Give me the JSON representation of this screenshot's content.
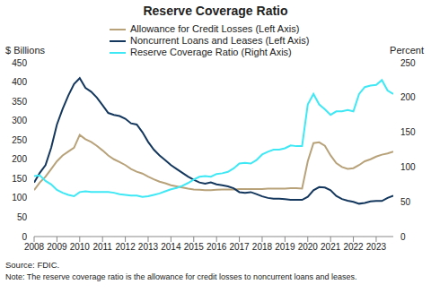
{
  "chart_data": {
    "type": "line",
    "title": "Reserve Coverage Ratio",
    "ylabel": "$ Billions",
    "y2label": "Percent",
    "source": "Source: FDIC.",
    "note": "Note: The reserve coverage ratio is the allowance for credit losses to noncurrent loans and leases.",
    "x": [
      2008,
      2008.25,
      2008.5,
      2008.75,
      2009,
      2009.25,
      2009.5,
      2009.75,
      2010,
      2010.25,
      2010.5,
      2010.75,
      2011,
      2011.25,
      2011.5,
      2011.75,
      2012,
      2012.25,
      2012.5,
      2012.75,
      2013,
      2013.25,
      2013.5,
      2013.75,
      2014,
      2014.25,
      2014.5,
      2014.75,
      2015,
      2015.25,
      2015.5,
      2015.75,
      2016,
      2016.25,
      2016.5,
      2016.75,
      2017,
      2017.25,
      2017.5,
      2017.75,
      2018,
      2018.25,
      2018.5,
      2018.75,
      2019,
      2019.25,
      2019.5,
      2019.75,
      2020,
      2020.25,
      2020.5,
      2020.75,
      2021,
      2021.25,
      2021.5,
      2021.75,
      2022,
      2022.25,
      2022.5,
      2022.75,
      2023,
      2023.25,
      2023.5,
      2023.75
    ],
    "xlim": [
      2008,
      2023.75
    ],
    "xticks": [
      2008,
      2009,
      2010,
      2011,
      2012,
      2013,
      2014,
      2015,
      2016,
      2017,
      2018,
      2019,
      2020,
      2021,
      2022,
      2023
    ],
    "ylim": [
      0,
      450
    ],
    "yticks": [
      0,
      50,
      100,
      150,
      200,
      250,
      300,
      350,
      400,
      450
    ],
    "y2lim": [
      0,
      250
    ],
    "y2ticks": [
      0,
      50,
      100,
      150,
      200,
      250
    ],
    "grid": false,
    "series": [
      {
        "name": "Allowance for Credit Losses (Left Axis)",
        "color": "#b8a27a",
        "values": [
          120,
          140,
          155,
          175,
          195,
          210,
          220,
          230,
          263,
          252,
          245,
          235,
          223,
          210,
          200,
          193,
          185,
          175,
          168,
          163,
          155,
          148,
          142,
          138,
          133,
          130,
          127,
          124,
          122,
          121,
          120,
          120,
          121,
          122,
          122,
          122,
          123,
          123,
          123,
          123,
          123,
          124,
          124,
          124,
          124,
          125,
          125,
          124,
          195,
          242,
          244,
          235,
          210,
          190,
          180,
          175,
          177,
          185,
          195,
          200,
          207,
          212,
          215,
          220
        ]
      },
      {
        "name": "Noncurrent Loans and Leases (Left Axis)",
        "color": "#14375e",
        "values": [
          140,
          165,
          185,
          230,
          290,
          330,
          365,
          395,
          410,
          385,
          375,
          360,
          340,
          320,
          315,
          312,
          305,
          293,
          290,
          270,
          245,
          225,
          210,
          198,
          185,
          175,
          165,
          155,
          147,
          140,
          137,
          140,
          135,
          133,
          130,
          125,
          115,
          113,
          115,
          110,
          104,
          100,
          98,
          98,
          97,
          95,
          95,
          95,
          103,
          120,
          128,
          127,
          120,
          105,
          97,
          93,
          90,
          85,
          87,
          91,
          92,
          92,
          100,
          106
        ]
      },
      {
        "name": "Reserve Coverage Ratio (Right Axis)",
        "color": "#3ee8f5",
        "axis": "y2",
        "values": [
          87,
          88,
          80,
          75,
          67,
          63,
          60,
          58,
          64,
          65,
          64,
          64,
          64,
          64,
          63,
          61,
          60,
          59,
          59,
          57,
          58,
          60,
          62,
          65,
          68,
          70,
          73,
          77,
          82,
          86,
          87,
          86,
          90,
          91,
          93,
          98,
          105,
          106,
          105,
          110,
          118,
          122,
          125,
          125,
          127,
          131,
          130,
          130,
          190,
          205,
          190,
          183,
          175,
          180,
          180,
          182,
          180,
          205,
          215,
          217,
          218,
          225,
          210,
          205
        ]
      }
    ]
  }
}
